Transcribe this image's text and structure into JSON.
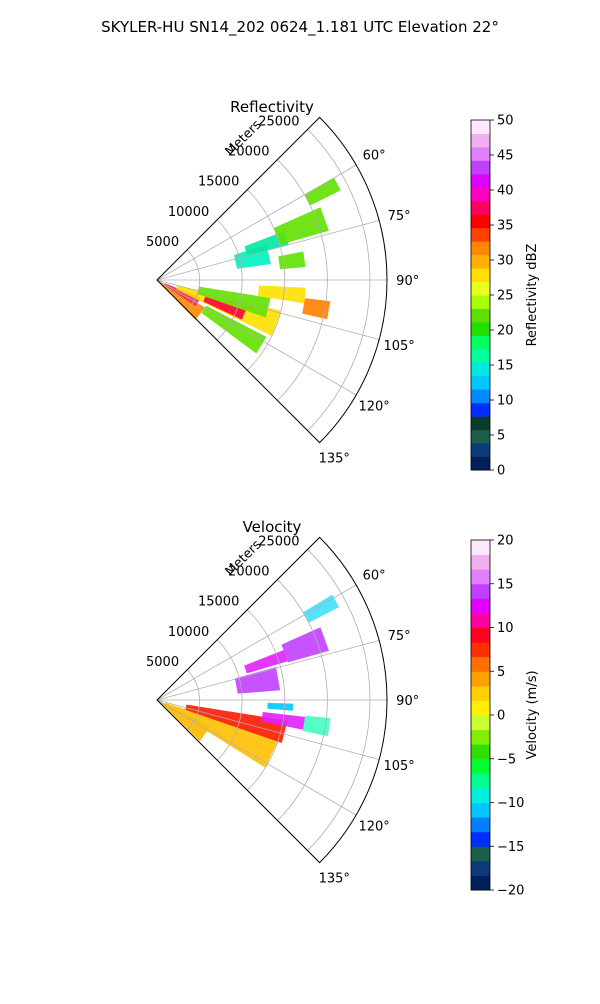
{
  "figure_title": "SKYLER-HU  SN14_202  0624_1.181 UTC Elevation 22°",
  "chart_data": [
    {
      "type": "polar-sector",
      "title": "Reflectivity",
      "radial_label": "Meters",
      "radial_ticks": [
        5000,
        10000,
        15000,
        20000,
        25000
      ],
      "angle_ticks": [
        "60°",
        "75°",
        "90°",
        "105°",
        "120°",
        "135°"
      ],
      "angle_range_deg": [
        45,
        135
      ],
      "radial_range": [
        0,
        27000
      ],
      "grid": true,
      "colorbar": {
        "label": "Reflectivity dBZ",
        "range": [
          0,
          50
        ],
        "ticks": [
          0,
          5,
          10,
          15,
          20,
          25,
          30,
          35,
          40,
          45,
          50
        ],
        "colors": [
          "#00205a",
          "#0a3a7a",
          "#1b5e4a",
          "#0b3b2a",
          "#0030ff",
          "#0088ff",
          "#00c8ff",
          "#00e8e0",
          "#00ffa0",
          "#00ff60",
          "#20e000",
          "#60e000",
          "#a8ff00",
          "#e8ff20",
          "#ffe000",
          "#ffb000",
          "#ff8800",
          "#ff4000",
          "#ff0000",
          "#ff0060",
          "#ff00c0",
          "#e000ff",
          "#c040ff",
          "#e080ff",
          "#f0b0f0",
          "#ffe8ff"
        ]
      },
      "echo_regions": [
        {
          "az": 128,
          "r0": 0,
          "r1": 6500,
          "w": 16,
          "color": "#ff8800"
        },
        {
          "az": 118,
          "r0": 1000,
          "r1": 5500,
          "w": 12,
          "color": "#ff2060"
        },
        {
          "az": 110,
          "r0": 2500,
          "r1": 15000,
          "w": 12,
          "color": "#ffe000"
        },
        {
          "az": 112,
          "r0": 6000,
          "r1": 11000,
          "w": 6,
          "color": "#ff0040"
        },
        {
          "az": 104,
          "r0": 5000,
          "r1": 13500,
          "w": 10,
          "color": "#60e000"
        },
        {
          "az": 122,
          "r0": 6500,
          "r1": 14500,
          "w": 9,
          "color": "#60e000"
        },
        {
          "az": 77,
          "r0": 9500,
          "r1": 13500,
          "w": 10,
          "color": "#00f0c0"
        },
        {
          "az": 72,
          "r0": 11000,
          "r1": 16000,
          "w": 6,
          "color": "#00e8a0"
        },
        {
          "az": 96,
          "r0": 12000,
          "r1": 17500,
          "w": 6,
          "color": "#ffe000"
        },
        {
          "az": 100,
          "r0": 17500,
          "r1": 20500,
          "w": 6,
          "color": "#ff8000"
        },
        {
          "az": 70,
          "r0": 15000,
          "r1": 21000,
          "w": 8,
          "color": "#60e000"
        },
        {
          "az": 82,
          "r0": 14500,
          "r1": 17500,
          "w": 6,
          "color": "#60e000"
        },
        {
          "az": 62,
          "r0": 20000,
          "r1": 24000,
          "w": 4,
          "color": "#60e000"
        }
      ]
    },
    {
      "type": "polar-sector",
      "title": "Velocity",
      "radial_label": "Meters",
      "radial_ticks": [
        5000,
        10000,
        15000,
        20000,
        25000
      ],
      "angle_ticks": [
        "60°",
        "75°",
        "90°",
        "105°",
        "120°",
        "135°"
      ],
      "angle_range_deg": [
        45,
        135
      ],
      "radial_range": [
        0,
        27000
      ],
      "grid": true,
      "colorbar": {
        "label": "Velocity (m/s)",
        "range": [
          -20,
          20
        ],
        "ticks": [
          -20,
          -15,
          -10,
          -5,
          0,
          5,
          10,
          15,
          20
        ],
        "colors": [
          "#00205a",
          "#0a3a7a",
          "#1b5e4a",
          "#0030ff",
          "#0080ff",
          "#00c8ff",
          "#00f0e0",
          "#00ff90",
          "#00ff30",
          "#30e000",
          "#80f000",
          "#c8ff30",
          "#fff000",
          "#ffd000",
          "#ffa000",
          "#ff7000",
          "#ff3000",
          "#ff0020",
          "#ff00a0",
          "#e000ff",
          "#c040ff",
          "#e080ff",
          "#f0b0f0",
          "#ffe8ff"
        ]
      },
      "echo_regions": [
        {
          "az": 125,
          "r0": 0,
          "r1": 7000,
          "w": 18,
          "color": "#ffb800"
        },
        {
          "az": 115,
          "r0": 1000,
          "r1": 15000,
          "w": 14,
          "color": "#ffc000"
        },
        {
          "az": 104,
          "r0": 3500,
          "r1": 15500,
          "w": 10,
          "color": "#ff1a00"
        },
        {
          "az": 99,
          "r0": 12500,
          "r1": 17500,
          "w": 5,
          "color": "#e020ff"
        },
        {
          "az": 99,
          "r0": 17500,
          "r1": 20500,
          "w": 6,
          "color": "#40ffc0"
        },
        {
          "az": 80,
          "r0": 9500,
          "r1": 14500,
          "w": 11,
          "color": "#c040ff"
        },
        {
          "az": 71,
          "r0": 11000,
          "r1": 16000,
          "w": 5,
          "color": "#e020ff"
        },
        {
          "az": 70,
          "r0": 16000,
          "r1": 21000,
          "w": 8,
          "color": "#c040ff"
        },
        {
          "az": 61,
          "r0": 20000,
          "r1": 24000,
          "w": 4,
          "color": "#40e0ff"
        },
        {
          "az": 93,
          "r0": 13000,
          "r1": 16000,
          "w": 3,
          "color": "#00c8ff"
        }
      ]
    }
  ]
}
